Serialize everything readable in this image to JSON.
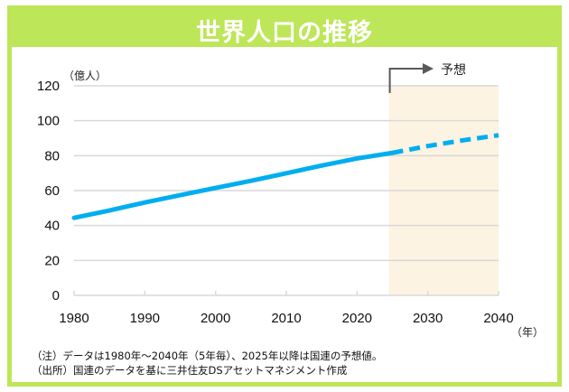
{
  "title": "世界人口の推移",
  "colors": {
    "frame": "#bde658",
    "line": "#00aeef",
    "forecast_shade": "#fdf3e2",
    "grid": "#d9d9d9",
    "arrow": "#595959"
  },
  "chart_data": {
    "type": "line",
    "title": "世界人口の推移",
    "ylabel": "（億人）",
    "xlabel": "（年）",
    "ylim": [
      0,
      120
    ],
    "xlim": [
      1980,
      2040
    ],
    "yticks": [
      0,
      20,
      40,
      60,
      80,
      100,
      120
    ],
    "xticks": [
      1980,
      1990,
      2000,
      2010,
      2020,
      2030,
      2040
    ],
    "grid": true,
    "x": [
      1980,
      1985,
      1990,
      1995,
      2000,
      2005,
      2010,
      2015,
      2020,
      2025,
      2030,
      2035,
      2040
    ],
    "series": [
      {
        "name": "世界人口",
        "values": [
          44.4,
          48.6,
          53.2,
          57.4,
          61.5,
          65.6,
          69.9,
          74.3,
          78.4,
          81.6,
          85.5,
          88.8,
          91.7
        ],
        "actual_until": 2025,
        "forecast_from": 2025
      }
    ],
    "forecast_region": {
      "from": 2024.5,
      "to": 2040
    },
    "annotation": "予想"
  },
  "notes": [
    "（注）データは1980年～2040年（5年毎）、2025年以降は国連の予想値。",
    "（出所）国連のデータを基に三井住友DSアセットマネジメント作成"
  ]
}
